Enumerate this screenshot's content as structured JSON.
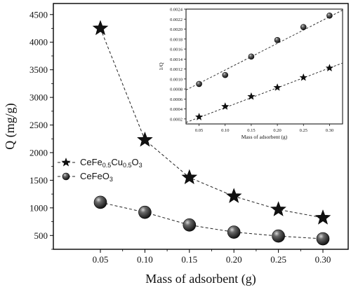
{
  "chart_data": [
    {
      "type": "line",
      "panel": "main",
      "xlabel": "Mass of adsorbent (g)",
      "ylabel": "Q (mg/g)",
      "x": [
        0.05,
        0.1,
        0.15,
        0.2,
        0.25,
        0.3
      ],
      "x_tick_labels": [
        "0.05",
        "0.10",
        "0.15",
        "0.20",
        "0.25",
        "0.30"
      ],
      "ylim": [
        250,
        4700
      ],
      "y_ticks": [
        500,
        1000,
        1500,
        2000,
        2500,
        3000,
        3500,
        4000,
        4500
      ],
      "y_tick_labels": [
        "500",
        "1000",
        "1500",
        "2000",
        "2500",
        "3000",
        "3500",
        "4000",
        "4500"
      ],
      "grid": false,
      "legend_position": "middle-left",
      "series": [
        {
          "name": "CeFe0.5Cu0.5O3",
          "legend_parts": [
            {
              "text": "CeFe",
              "sub": false
            },
            {
              "text": "0.5",
              "sub": true
            },
            {
              "text": "Cu",
              "sub": false
            },
            {
              "text": "0.5",
              "sub": true
            },
            {
              "text": "O",
              "sub": false
            },
            {
              "text": "3",
              "sub": true
            }
          ],
          "marker": "star",
          "values": [
            4250,
            2230,
            1550,
            1210,
            970,
            820
          ]
        },
        {
          "name": "CeFeO3",
          "legend_parts": [
            {
              "text": "CeFeO",
              "sub": false
            },
            {
              "text": "3",
              "sub": true
            }
          ],
          "marker": "sphere",
          "values": [
            1100,
            920,
            690,
            560,
            490,
            440
          ]
        }
      ]
    },
    {
      "type": "scatter",
      "panel": "inset",
      "xlabel": "Mass of adsorbent (g)",
      "ylabel": "1/Q",
      "x_ticks": [
        0.05,
        0.1,
        0.15,
        0.2,
        0.25,
        0.3
      ],
      "x_tick_labels": [
        "0.05",
        "0.10",
        "0.15",
        "0.20",
        "0.25",
        "0.30"
      ],
      "xlim": [
        0.025,
        0.325
      ],
      "ylim": [
        0.0001,
        0.0024
      ],
      "y_ticks": [
        0.0002,
        0.0004,
        0.0006,
        0.0008,
        0.001,
        0.0012,
        0.0014,
        0.0016,
        0.0018,
        0.002,
        0.0022,
        0.0024
      ],
      "y_tick_labels": [
        "0.0002",
        "0.0004",
        "0.0006",
        "0.0008",
        "0.0010",
        "0.0012",
        "0.0014",
        "0.0016",
        "0.0018",
        "0.0020",
        "0.0022",
        "0.0024"
      ],
      "series": [
        {
          "marker": "sphere",
          "x": [
            0.05,
            0.1,
            0.15,
            0.2,
            0.25,
            0.3
          ],
          "values": [
            0.0009,
            0.00108,
            0.00145,
            0.00178,
            0.00204,
            0.00227
          ],
          "fit_line": {
            "x": [
              0.025,
              0.325
            ],
            "y": [
              0.00078,
              0.00238
            ]
          }
        },
        {
          "marker": "star",
          "x": [
            0.05,
            0.1,
            0.15,
            0.2,
            0.25,
            0.3
          ],
          "values": [
            0.00024,
            0.00045,
            0.00065,
            0.00083,
            0.00103,
            0.00122
          ],
          "fit_line": {
            "x": [
              0.025,
              0.325
            ],
            "y": [
              0.00013,
              0.00132
            ]
          }
        }
      ]
    }
  ]
}
